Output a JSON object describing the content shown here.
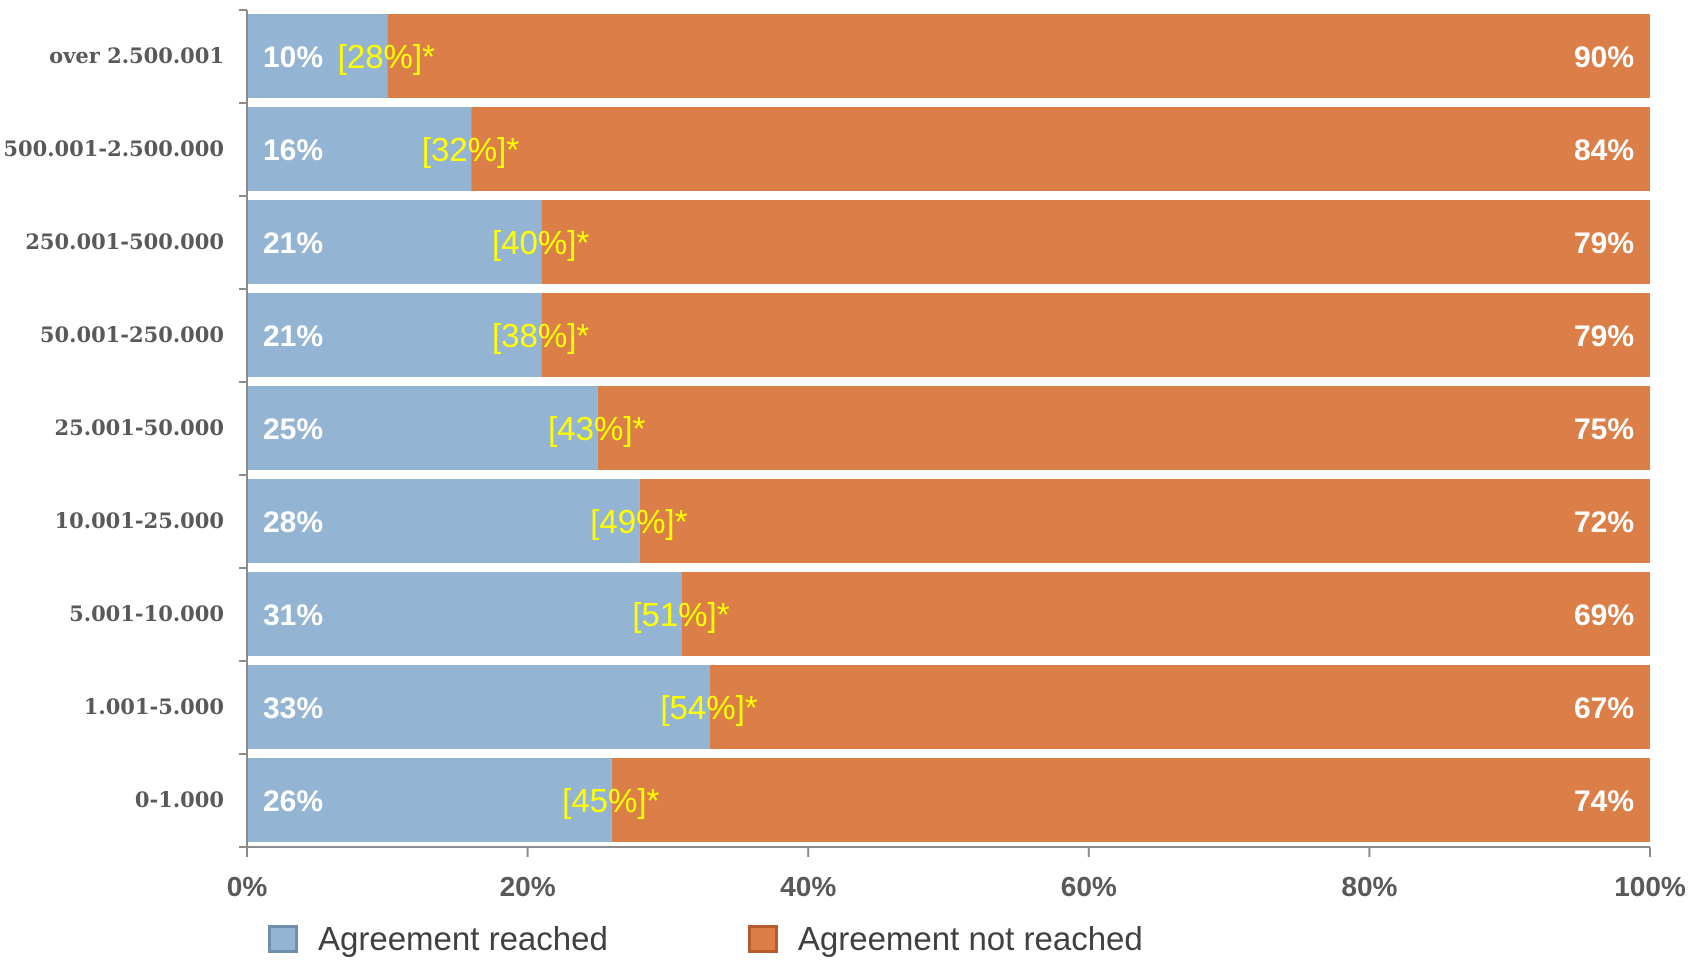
{
  "chart_data": {
    "type": "bar",
    "orientation": "horizontal",
    "stacked": true,
    "categories": [
      "over 2.500.001",
      "500.001-2.500.000",
      "250.001-500.000",
      "50.001-250.000",
      "25.001-50.000",
      "10.001-25.000",
      "5.001-10.000",
      "1.001-5.000",
      "0-1.000"
    ],
    "series": [
      {
        "name": "Agreement reached",
        "color": "#93b4d3",
        "values": [
          10,
          16,
          21,
          21,
          25,
          28,
          31,
          33,
          26
        ],
        "labels": [
          "10%",
          "16%",
          "21%",
          "21%",
          "25%",
          "28%",
          "31%",
          "33%",
          "26%"
        ]
      },
      {
        "name": "Agreement not reached",
        "color": "#db7e47",
        "values": [
          90,
          84,
          79,
          79,
          75,
          72,
          69,
          67,
          74
        ],
        "labels": [
          "90%",
          "84%",
          "79%",
          "79%",
          "75%",
          "72%",
          "69%",
          "67%",
          "74%"
        ]
      }
    ],
    "annotations": [
      "[28%]*",
      "[32%]*",
      "[40%]*",
      "[38%]*",
      "[43%]*",
      "[49%]*",
      "[51%]*",
      "[54%]*",
      "[45%]*"
    ],
    "annotation_color": "#ffff00",
    "x_ticks": [
      "0%",
      "20%",
      "40%",
      "60%",
      "80%",
      "100%"
    ],
    "xlim": [
      0,
      100
    ],
    "grid": false,
    "legend_position": "bottom",
    "title": "",
    "xlabel": "",
    "ylabel": ""
  },
  "legend": {
    "reached_label": "Agreement reached",
    "not_reached_label": "Agreement not reached"
  }
}
